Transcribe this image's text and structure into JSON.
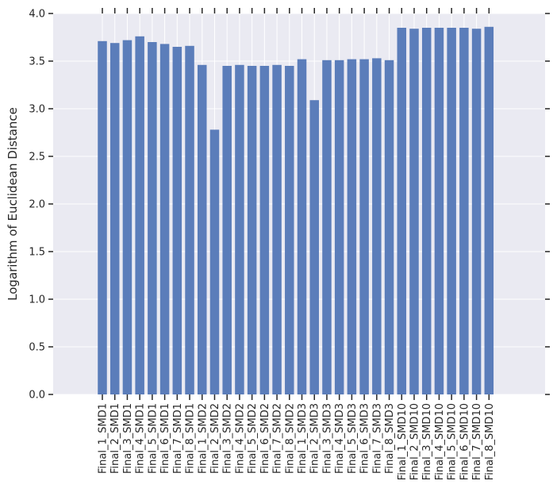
{
  "chart_data": {
    "type": "bar",
    "title": "",
    "xlabel": "",
    "ylabel": "Logarithm of Euclidean Distance",
    "ylim": [
      0,
      4.0
    ],
    "yticks": [
      0.0,
      0.5,
      1.0,
      1.5,
      2.0,
      2.5,
      3.0,
      3.5,
      4.0
    ],
    "ytick_labels": [
      "0.0",
      "0.5",
      "1.0",
      "1.5",
      "2.0",
      "2.5",
      "3.0",
      "3.5",
      "4.0"
    ],
    "grid": true,
    "legend": "none",
    "colors": {
      "bar": "#5b7dba",
      "background": "#eaeaf2",
      "grid": "#ffffff",
      "text": "#262626"
    },
    "categories": [
      "Final_1_SMD1",
      "Final_2_SMD1",
      "Final_3_SMD1",
      "Final_4_SMD1",
      "Final_5_SMD1",
      "Final_6_SMD1",
      "Final_7_SMD1",
      "Final_8_SMD1",
      "Final_1_SMD2",
      "Final_2_SMD2",
      "Final_3_SMD2",
      "Final_4_SMD2",
      "Final_5_SMD2",
      "Final_6_SMD2",
      "Final_7_SMD2",
      "Final_8_SMD2",
      "Final_1_SMD3",
      "Final_2_SMD3",
      "Final_3_SMD3",
      "Final_4_SMD3",
      "Final_5_SMD3",
      "Final_6_SMD3",
      "Final_7_SMD3",
      "Final_8_SMD3",
      "Final_1_SMD10",
      "Final_2_SMD10",
      "Final_3_SMD10",
      "Final_4_SMD10",
      "Final_5_SMD10",
      "Final_6_SMD10",
      "Final_7_SMD10",
      "Final_8_SMD10"
    ],
    "values": [
      3.71,
      3.69,
      3.72,
      3.76,
      3.7,
      3.68,
      3.65,
      3.66,
      3.46,
      2.78,
      3.45,
      3.46,
      3.45,
      3.45,
      3.46,
      3.45,
      3.52,
      3.09,
      3.51,
      3.51,
      3.52,
      3.52,
      3.53,
      3.51,
      3.85,
      3.84,
      3.85,
      3.85,
      3.85,
      3.85,
      3.84,
      3.86
    ]
  }
}
